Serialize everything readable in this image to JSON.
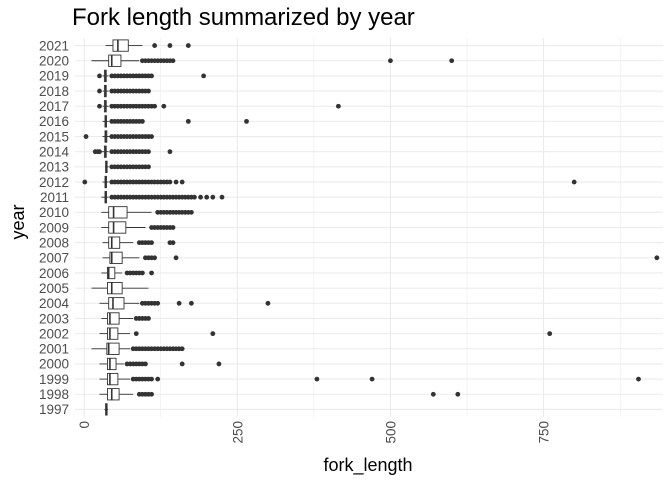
{
  "chart_data": {
    "type": "boxplot",
    "orientation": "horizontal",
    "title": "Fork length summarized by year",
    "xlabel": "fork_length",
    "ylabel": "year",
    "xlim": [
      -15,
      945
    ],
    "x_ticks": [
      0,
      250,
      500,
      750
    ],
    "x_tick_labels": [
      "0",
      "250",
      "500",
      "750"
    ],
    "grid": true,
    "colors": {
      "box": "#333333",
      "outlier": "#333333",
      "grid": "#ebebeb",
      "background": "#ffffff"
    },
    "categories": [
      "1997",
      "1998",
      "1999",
      "2000",
      "2001",
      "2002",
      "2003",
      "2004",
      "2005",
      "2006",
      "2007",
      "2008",
      "2009",
      "2010",
      "2011",
      "2012",
      "2013",
      "2014",
      "2015",
      "2016",
      "2017",
      "2018",
      "2019",
      "2020",
      "2021"
    ],
    "boxes": [
      {
        "year": "1997",
        "min": 33,
        "q1": 35,
        "median": 36,
        "q3": 37,
        "max": 39,
        "outliers": []
      },
      {
        "year": "1998",
        "min": 25,
        "q1": 38,
        "median": 45,
        "q3": 57,
        "max": 80,
        "outliers": [
          90,
          95,
          100,
          105,
          110,
          570,
          610
        ]
      },
      {
        "year": "1999",
        "min": 25,
        "q1": 38,
        "median": 42,
        "q3": 55,
        "max": 75,
        "outliers": [
          80,
          85,
          90,
          95,
          100,
          105,
          110,
          120,
          380,
          470,
          905
        ]
      },
      {
        "year": "2000",
        "min": 25,
        "q1": 38,
        "median": 42,
        "q3": 52,
        "max": 65,
        "outliers": [
          70,
          75,
          80,
          85,
          90,
          95,
          100,
          160,
          220
        ]
      },
      {
        "year": "2001",
        "min": 12,
        "q1": 37,
        "median": 40,
        "q3": 57,
        "max": 75,
        "outliers": [
          80,
          85,
          90,
          95,
          100,
          105,
          110,
          115,
          120,
          125,
          130,
          135,
          140,
          145,
          150,
          155,
          160
        ]
      },
      {
        "year": "2002",
        "min": 25,
        "q1": 38,
        "median": 42,
        "q3": 55,
        "max": 75,
        "outliers": [
          85,
          210,
          760
        ]
      },
      {
        "year": "2003",
        "min": 28,
        "q1": 38,
        "median": 42,
        "q3": 57,
        "max": 80,
        "outliers": [
          85,
          90,
          95,
          100,
          105
        ]
      },
      {
        "year": "2004",
        "min": 25,
        "q1": 40,
        "median": 47,
        "q3": 65,
        "max": 90,
        "outliers": [
          95,
          100,
          105,
          110,
          115,
          120,
          155,
          175,
          300
        ]
      },
      {
        "year": "2005",
        "min": 12,
        "q1": 38,
        "median": 45,
        "q3": 62,
        "max": 105,
        "outliers": []
      },
      {
        "year": "2006",
        "min": 28,
        "q1": 38,
        "median": 40,
        "q3": 50,
        "max": 62,
        "outliers": [
          70,
          75,
          80,
          85,
          90,
          95,
          110
        ]
      },
      {
        "year": "2007",
        "min": 30,
        "q1": 42,
        "median": 45,
        "q3": 62,
        "max": 90,
        "outliers": [
          100,
          105,
          110,
          115,
          150,
          935
        ]
      },
      {
        "year": "2008",
        "min": 30,
        "q1": 40,
        "median": 45,
        "q3": 58,
        "max": 80,
        "outliers": [
          90,
          95,
          100,
          105,
          110,
          140,
          145
        ]
      },
      {
        "year": "2009",
        "min": 28,
        "q1": 40,
        "median": 48,
        "q3": 68,
        "max": 100,
        "outliers": [
          110,
          115,
          120,
          125,
          130,
          135,
          140,
          145
        ]
      },
      {
        "year": "2010",
        "min": 28,
        "q1": 40,
        "median": 48,
        "q3": 70,
        "max": 110,
        "outliers": [
          120,
          125,
          130,
          135,
          140,
          145,
          150,
          155,
          160,
          165,
          170,
          175
        ]
      },
      {
        "year": "2011",
        "min": 28,
        "q1": 34,
        "median": 35,
        "q3": 36,
        "max": 40,
        "outliers": [
          45,
          50,
          55,
          60,
          65,
          70,
          75,
          80,
          85,
          90,
          95,
          100,
          105,
          110,
          115,
          120,
          125,
          130,
          135,
          140,
          145,
          150,
          155,
          160,
          165,
          170,
          175,
          180,
          190,
          200,
          210,
          225
        ]
      },
      {
        "year": "2012",
        "min": 30,
        "q1": 34,
        "median": 35,
        "q3": 36,
        "max": 40,
        "outliers": [
          1,
          45,
          50,
          55,
          60,
          65,
          70,
          75,
          80,
          85,
          90,
          95,
          100,
          105,
          110,
          115,
          120,
          125,
          130,
          135,
          140,
          150,
          160,
          800
        ]
      },
      {
        "year": "2013",
        "min": 34,
        "q1": 35,
        "median": 36,
        "q3": 37,
        "max": 40,
        "outliers": [
          45,
          50,
          55,
          60,
          65,
          70,
          75,
          80,
          85,
          90,
          95,
          100,
          105
        ]
      },
      {
        "year": "2014",
        "min": 28,
        "q1": 33,
        "median": 35,
        "q3": 36,
        "max": 40,
        "outliers": [
          18,
          22,
          25,
          45,
          50,
          55,
          60,
          65,
          70,
          75,
          80,
          85,
          90,
          95,
          100,
          105,
          140
        ]
      },
      {
        "year": "2015",
        "min": 30,
        "q1": 34,
        "median": 35,
        "q3": 37,
        "max": 42,
        "outliers": [
          3,
          45,
          50,
          55,
          60,
          65,
          70,
          75,
          80,
          85,
          90,
          95,
          100,
          105,
          110
        ]
      },
      {
        "year": "2016",
        "min": 30,
        "q1": 34,
        "median": 35,
        "q3": 36,
        "max": 40,
        "outliers": [
          45,
          50,
          55,
          60,
          65,
          70,
          75,
          80,
          85,
          90,
          95,
          170,
          265
        ]
      },
      {
        "year": "2017",
        "min": 30,
        "q1": 33,
        "median": 35,
        "q3": 36,
        "max": 40,
        "outliers": [
          25,
          45,
          50,
          55,
          60,
          65,
          70,
          75,
          80,
          85,
          90,
          95,
          100,
          105,
          110,
          115,
          130,
          415
        ]
      },
      {
        "year": "2018",
        "min": 30,
        "q1": 33,
        "median": 35,
        "q3": 36,
        "max": 40,
        "outliers": [
          25,
          45,
          50,
          55,
          60,
          65,
          70,
          75,
          80,
          85,
          90,
          95,
          100,
          105
        ]
      },
      {
        "year": "2019",
        "min": 30,
        "q1": 33,
        "median": 35,
        "q3": 36,
        "max": 40,
        "outliers": [
          25,
          45,
          50,
          55,
          60,
          65,
          70,
          75,
          80,
          85,
          90,
          95,
          100,
          105,
          110,
          195
        ]
      },
      {
        "year": "2020",
        "min": 12,
        "q1": 40,
        "median": 45,
        "q3": 60,
        "max": 90,
        "outliers": [
          95,
          100,
          105,
          110,
          115,
          120,
          125,
          130,
          135,
          140,
          145,
          500,
          600
        ]
      },
      {
        "year": "2021",
        "min": 35,
        "q1": 47,
        "median": 55,
        "q3": 72,
        "max": 95,
        "outliers": [
          115,
          140,
          170
        ]
      }
    ]
  }
}
